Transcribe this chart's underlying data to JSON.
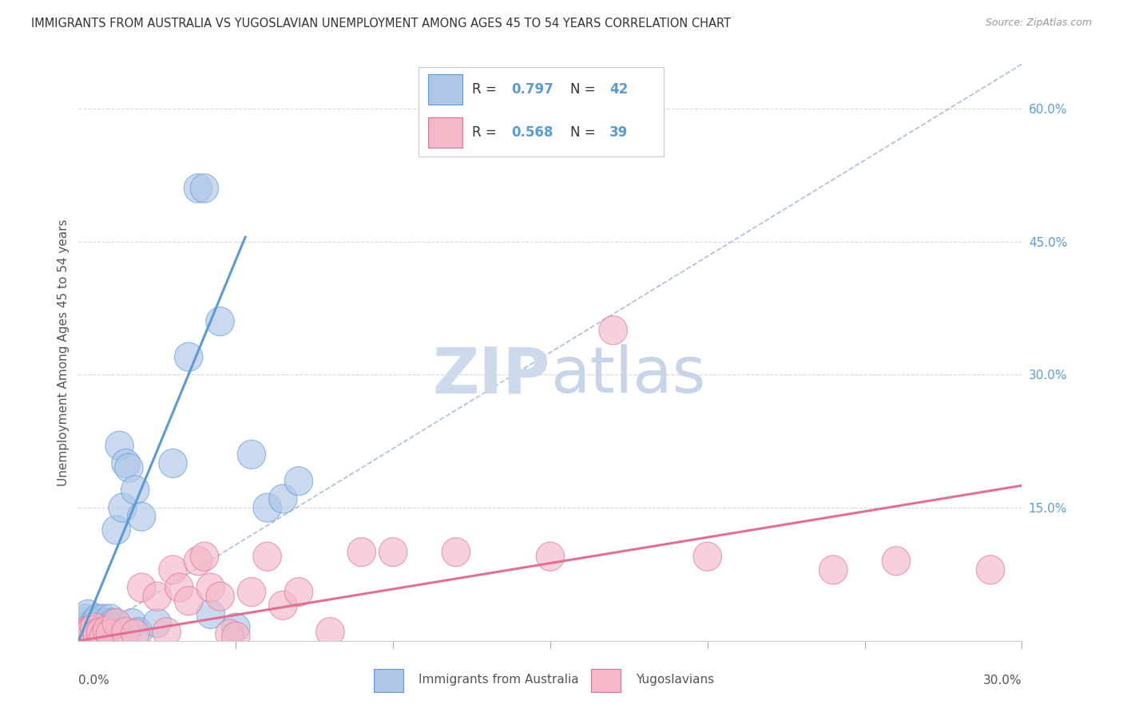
{
  "title": "IMMIGRANTS FROM AUSTRALIA VS YUGOSLAVIAN UNEMPLOYMENT AMONG AGES 45 TO 54 YEARS CORRELATION CHART",
  "source": "Source: ZipAtlas.com",
  "ylabel": "Unemployment Among Ages 45 to 54 years",
  "legend_label1": "Immigrants from Australia",
  "legend_label2": "Yugoslavians",
  "xlim": [
    0.0,
    0.3
  ],
  "ylim": [
    0.0,
    0.65
  ],
  "yticks": [
    0.0,
    0.15,
    0.3,
    0.45,
    0.6
  ],
  "ytick_labels": [
    "",
    "15.0%",
    "30.0%",
    "45.0%",
    "60.0%"
  ],
  "blue_x": [
    0.001,
    0.001,
    0.002,
    0.002,
    0.003,
    0.003,
    0.004,
    0.004,
    0.005,
    0.005,
    0.006,
    0.006,
    0.007,
    0.007,
    0.008,
    0.008,
    0.009,
    0.009,
    0.01,
    0.01,
    0.011,
    0.012,
    0.013,
    0.014,
    0.015,
    0.016,
    0.017,
    0.018,
    0.019,
    0.02,
    0.025,
    0.03,
    0.035,
    0.038,
    0.04,
    0.042,
    0.045,
    0.05,
    0.055,
    0.06,
    0.065,
    0.07
  ],
  "blue_y": [
    0.01,
    0.02,
    0.015,
    0.025,
    0.01,
    0.03,
    0.008,
    0.015,
    0.02,
    0.01,
    0.015,
    0.025,
    0.02,
    0.008,
    0.025,
    0.015,
    0.02,
    0.01,
    0.015,
    0.025,
    0.02,
    0.125,
    0.22,
    0.15,
    0.2,
    0.195,
    0.02,
    0.17,
    0.01,
    0.14,
    0.02,
    0.2,
    0.32,
    0.51,
    0.51,
    0.03,
    0.36,
    0.015,
    0.21,
    0.15,
    0.16,
    0.18
  ],
  "pink_x": [
    0.001,
    0.002,
    0.003,
    0.004,
    0.005,
    0.006,
    0.007,
    0.008,
    0.009,
    0.01,
    0.012,
    0.015,
    0.018,
    0.02,
    0.025,
    0.028,
    0.03,
    0.032,
    0.035,
    0.038,
    0.04,
    0.042,
    0.045,
    0.048,
    0.05,
    0.055,
    0.06,
    0.065,
    0.07,
    0.08,
    0.09,
    0.1,
    0.12,
    0.15,
    0.17,
    0.2,
    0.24,
    0.26,
    0.29
  ],
  "pink_y": [
    0.005,
    0.01,
    0.008,
    0.012,
    0.015,
    0.008,
    0.01,
    0.005,
    0.012,
    0.008,
    0.02,
    0.01,
    0.008,
    0.06,
    0.05,
    0.01,
    0.08,
    0.06,
    0.045,
    0.09,
    0.095,
    0.06,
    0.05,
    0.008,
    0.005,
    0.055,
    0.095,
    0.04,
    0.055,
    0.01,
    0.1,
    0.1,
    0.1,
    0.095,
    0.35,
    0.095,
    0.08,
    0.09,
    0.08
  ],
  "blue_line_x": [
    0.0,
    0.053
  ],
  "blue_line_y": [
    0.0,
    0.455
  ],
  "pink_line_x": [
    0.0,
    0.3
  ],
  "pink_line_y": [
    0.0,
    0.175
  ],
  "diag_line_color": "#a0b8d8",
  "blue_color": "#5b9bd5",
  "blue_fill": "#aec6e8",
  "pink_color": "#e07090",
  "pink_fill": "#f4b8c8",
  "grid_color": "#d0d0d0",
  "watermark_zip_color": "#cddaec",
  "watermark_atlas_color": "#c8d4e8"
}
